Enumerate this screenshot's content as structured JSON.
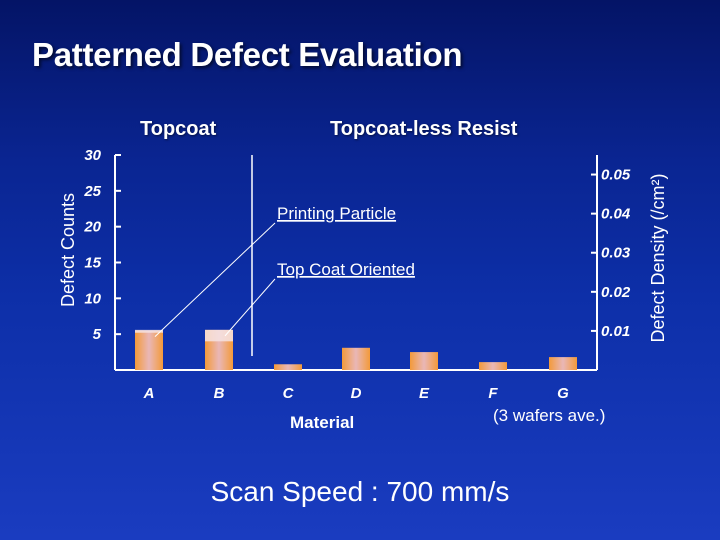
{
  "slide": {
    "title": "Patterned Defect Evaluation",
    "footer": "Scan Speed : 700 mm/s"
  },
  "colors": {
    "background_top": "#041466",
    "background_bottom": "#1a3cc0",
    "bar_edge": "#f39a3a",
    "bar_center": "#e9b7b7",
    "text": "#ffffff"
  },
  "chart_data": {
    "type": "bar",
    "title": "",
    "groups": [
      {
        "label": "Topcoat",
        "categories": [
          "A",
          "B"
        ]
      },
      {
        "label": "Topcoat-less Resist",
        "categories": [
          "C",
          "D",
          "E",
          "F",
          "G"
        ]
      }
    ],
    "categories": [
      "A",
      "B",
      "C",
      "D",
      "E",
      "F",
      "G"
    ],
    "series": [
      {
        "values": [
          5.5,
          5.6,
          0.8,
          3.1,
          2.5,
          1.1,
          1.8
        ]
      }
    ],
    "highlights": [
      {
        "category": "A",
        "from": 5.2,
        "to": 5.6
      },
      {
        "category": "B",
        "from": 4.0,
        "to": 5.6
      }
    ],
    "xlabel": "Material",
    "ylabel": "Defect Counts",
    "ylabel_right": "Defect Density (/cm²)",
    "ylim": [
      0,
      30
    ],
    "yticks": [
      5,
      10,
      15,
      20,
      25,
      30
    ],
    "ylim_right": [
      0,
      0.055
    ],
    "yticks_right": [
      "0.01",
      "0.02",
      "0.03",
      "0.04",
      "0.05"
    ],
    "yticks_right_values": [
      0.01,
      0.02,
      0.03,
      0.04,
      0.05
    ],
    "annotations": [
      {
        "text": "Printing Particle",
        "category": "A"
      },
      {
        "text": "Top Coat Oriented",
        "category": "B"
      }
    ],
    "note": "(3 wafers ave.)",
    "grid": false
  }
}
